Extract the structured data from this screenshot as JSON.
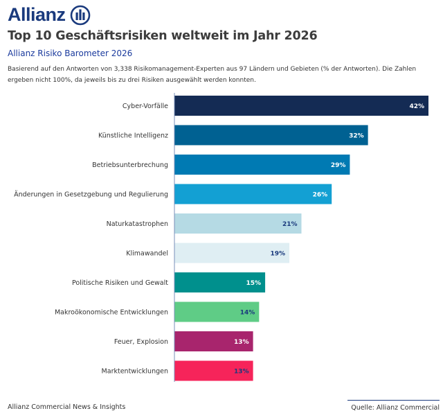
{
  "brand": {
    "name": "Allianz"
  },
  "header": {
    "title": "Top 10 Geschäftsrisiken weltweit im Jahr 2026",
    "subtitle": "Allianz Risiko Barometer 2026",
    "description": "Basierend auf den Antworten von 3,338 Risikomanagement-Experten aus 97 Ländern und Gebieten (% der Antworten). Die Zahlen ergeben nicht 100%, da jeweils bis zu drei Risiken ausgewählt werden konnten."
  },
  "chart_data": {
    "type": "bar",
    "orientation": "horizontal",
    "categories": [
      "Cyber-Vorfälle",
      "Künstliche Intelligenz",
      "Betriebsunterbrechung",
      "Änderungen in Gesetzgebung und Regulierung",
      "Naturkatastrophen",
      "Klimawandel",
      "Politische Risiken und Gewalt",
      "Makroökonomische Entwicklungen",
      "Feuer, Explosion",
      "Marktentwicklungen"
    ],
    "values": [
      42,
      32,
      29,
      26,
      21,
      19,
      15,
      14,
      13,
      13
    ],
    "value_labels": [
      "42%",
      "32%",
      "29%",
      "26%",
      "21%",
      "19%",
      "15%",
      "14%",
      "13%",
      "13%"
    ],
    "unit": "%",
    "bar_colors": [
      "#142b54",
      "#006192",
      "#007ab3",
      "#13a0d3",
      "#b5dae4",
      "#dfeef3",
      "#00908d",
      "#5fcc86",
      "#a8256d",
      "#f6245a"
    ],
    "label_colors": [
      "#ffffff",
      "#ffffff",
      "#ffffff",
      "#ffffff",
      "#1a3a7d",
      "#1a3a7d",
      "#ffffff",
      "#1a3a7d",
      "#ffffff",
      "#1a3a7d"
    ],
    "xlim": [
      0,
      42
    ],
    "grid": false,
    "axis_color": "#7a8fb8"
  },
  "footer": {
    "left": "Allianz Commercial News & Insights",
    "right": "Quelle: Allianz Commercial"
  }
}
